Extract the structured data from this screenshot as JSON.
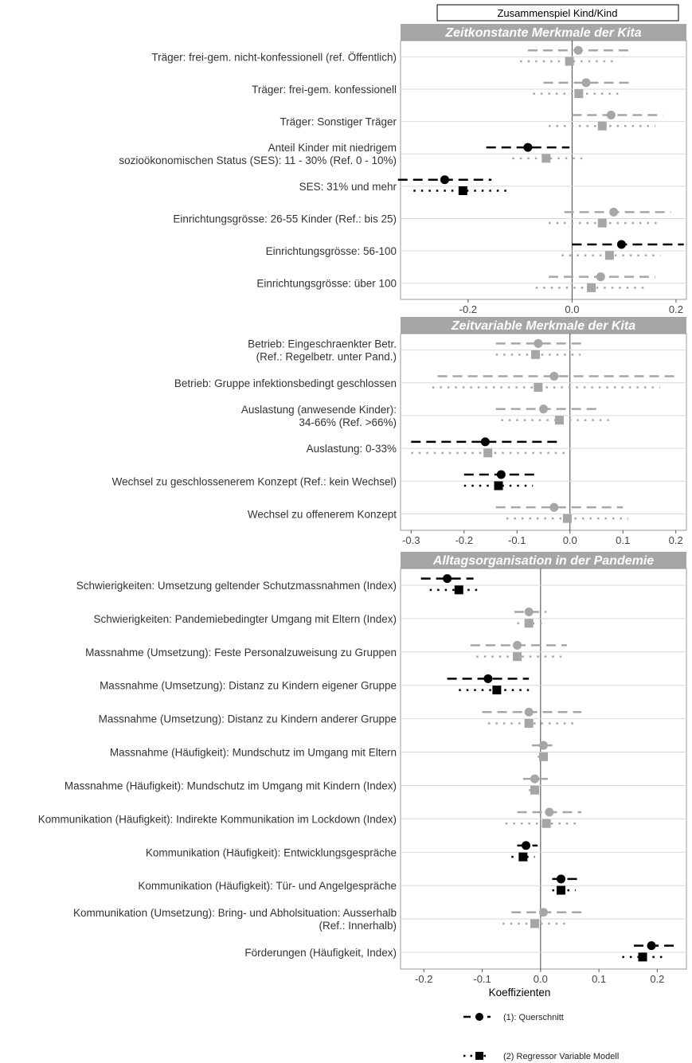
{
  "header_box": "Zusammenspiel Kind/Kind",
  "x_axis_label": "Koeffizienten",
  "legend": [
    {
      "label": "(1): Querschnitt",
      "marker": "circle",
      "line": "dashed"
    },
    {
      "label": "(2) Regressor Variable Modell",
      "marker": "square",
      "line": "dotted"
    }
  ],
  "colors": {
    "significant": "#000000",
    "not_significant": "#a6a6a6",
    "panel_strip": "#a6a6a6",
    "zero_line": "#444444"
  },
  "chart_data": [
    {
      "type": "dot-and-whisker",
      "title": "Zeitkonstante Merkmale der Kita",
      "xlim": [
        -0.33,
        0.22
      ],
      "ticks": [
        -0.2,
        0.0,
        0.2
      ],
      "tick_labels": [
        "-0.2",
        "0.0",
        "0.2"
      ],
      "labels": [
        [
          "Träger: frei-gem. nicht-konfessionell (ref. Öffentlich)"
        ],
        [
          "Träger: frei-gem. konfessionell"
        ],
        [
          "Träger: Sonstiger Träger"
        ],
        [
          "Anteil Kinder mit niedrigem",
          "sozioökonomischen Status (SES): 11 - 30% (Ref. 0 - 10%)"
        ],
        [
          "SES: 31% und mehr"
        ],
        [
          "Einrichtungsgrösse: 26-55 Kinder (Ref.: bis 25)"
        ],
        [
          "Einrichtungsgrösse: 56-100"
        ],
        [
          "Einrichtungsgrösse: über 100"
        ]
      ],
      "series": [
        {
          "name": "(1): Querschnitt",
          "est": [
            0.012,
            0.027,
            0.075,
            -0.085,
            -0.245,
            0.08,
            0.095,
            0.055
          ],
          "lo": [
            -0.085,
            -0.055,
            0.0,
            -0.165,
            -0.335,
            -0.015,
            0.0,
            -0.045
          ],
          "hi": [
            0.11,
            0.11,
            0.175,
            -0.005,
            -0.155,
            0.19,
            0.215,
            0.16
          ],
          "sig": [
            false,
            false,
            false,
            true,
            true,
            false,
            true,
            false
          ]
        },
        {
          "name": "(2) Regressor Variable Modell",
          "est": [
            -0.005,
            0.013,
            0.058,
            -0.05,
            -0.21,
            0.058,
            0.072,
            0.037
          ],
          "lo": [
            -0.1,
            -0.075,
            -0.045,
            -0.115,
            -0.305,
            -0.045,
            -0.02,
            -0.07
          ],
          "hi": [
            0.085,
            0.095,
            0.16,
            0.02,
            -0.125,
            0.165,
            0.17,
            0.14
          ],
          "sig": [
            false,
            false,
            false,
            false,
            true,
            false,
            false,
            false
          ]
        }
      ]
    },
    {
      "type": "dot-and-whisker",
      "title": "Zeitvariable Merkmale der Kita",
      "xlim": [
        -0.32,
        0.22
      ],
      "ticks": [
        -0.3,
        -0.2,
        -0.1,
        0.0,
        0.1,
        0.2
      ],
      "tick_labels": [
        "-0.3",
        "-0.2",
        "-0.1",
        "0.0",
        "0.1",
        "0.2"
      ],
      "labels": [
        [
          "Betrieb: Eingeschraenkter Betr.",
          "(Ref.: Regelbetr. unter Pand.)"
        ],
        [
          "Betrieb: Gruppe infektionsbedingt geschlossen"
        ],
        [
          "Auslastung (anwesende Kinder):",
          "34-66% (Ref. >66%)"
        ],
        [
          "Auslastung:  0-33%"
        ],
        [
          "Wechsel zu geschlossenerem Konzept (Ref.: kein Wechsel)"
        ],
        [
          "Wechsel zu offenerem Konzept"
        ]
      ],
      "series": [
        {
          "name": "(1): Querschnitt",
          "est": [
            -0.06,
            -0.03,
            -0.05,
            -0.16,
            -0.13,
            -0.03
          ],
          "lo": [
            -0.14,
            -0.25,
            -0.14,
            -0.3,
            -0.2,
            -0.14
          ],
          "hi": [
            0.03,
            0.2,
            0.06,
            -0.02,
            -0.06,
            0.1
          ],
          "sig": [
            false,
            false,
            false,
            true,
            true,
            false
          ]
        },
        {
          "name": "(2) Regressor Variable Modell",
          "est": [
            -0.065,
            -0.06,
            -0.02,
            -0.155,
            -0.135,
            -0.005
          ],
          "lo": [
            -0.14,
            -0.26,
            -0.13,
            -0.3,
            -0.2,
            -0.12
          ],
          "hi": [
            0.02,
            0.17,
            0.08,
            -0.01,
            -0.07,
            0.11
          ],
          "sig": [
            false,
            false,
            false,
            false,
            true,
            false
          ]
        }
      ]
    },
    {
      "type": "dot-and-whisker",
      "title": "Alltagsorganisation in der Pandemie",
      "xlim": [
        -0.24,
        0.25
      ],
      "ticks": [
        -0.2,
        -0.1,
        0.0,
        0.1,
        0.2
      ],
      "tick_labels": [
        "-0.2",
        "-0.1",
        "0.0",
        "0.1",
        "0.2"
      ],
      "xlabel": "Koeffizienten",
      "labels": [
        [
          "Schwierigkeiten: Umsetzung geltender Schutzmassnahmen (Index)"
        ],
        [
          "Schwierigkeiten: Pandemiebedingter Umgang mit Eltern (Index)"
        ],
        [
          "Massnahme (Umsetzung): Feste Personalzuweisung zu Gruppen"
        ],
        [
          "Massnahme (Umsetzung): Distanz zu Kindern eigener Gruppe"
        ],
        [
          "Massnahme (Umsetzung):  Distanz zu Kindern anderer Gruppe"
        ],
        [
          "Massnahme (Häufigkeit): Mundschutz im Umgang mit Eltern"
        ],
        [
          "Massnahme (Häufigkeit): Mundschutz im Umgang mit Kindern (Index)"
        ],
        [
          "Kommunikation (Häufigkeit): Indirekte Kommunikation im Lockdown (Index)"
        ],
        [
          "Kommunikation (Häufigkeit): Entwicklungsgespräche"
        ],
        [
          "Kommunikation (Häufigkeit): Tür- und Angelgespräche"
        ],
        [
          "Kommunikation (Umsetzung): Bring- und Abholsituation: Ausserhalb",
          "(Ref.: Innerhalb)"
        ],
        [
          "Förderungen (Häufigkeit, Index)"
        ]
      ],
      "series": [
        {
          "name": "(1): Querschnitt",
          "est": [
            -0.16,
            -0.02,
            -0.04,
            -0.09,
            -0.02,
            0.005,
            -0.01,
            0.015,
            -0.025,
            0.035,
            0.005,
            0.19
          ],
          "lo": [
            -0.205,
            -0.045,
            -0.12,
            -0.16,
            -0.1,
            -0.015,
            -0.03,
            -0.04,
            -0.04,
            0.02,
            -0.05,
            0.16
          ],
          "hi": [
            -0.115,
            0.01,
            0.045,
            -0.02,
            0.07,
            0.02,
            0.015,
            0.07,
            -0.005,
            0.065,
            0.07,
            0.23
          ]
        },
        {
          "name": "(2) Regressor Variable Modell",
          "est": [
            -0.14,
            -0.02,
            -0.04,
            -0.075,
            -0.02,
            0.005,
            -0.01,
            0.01,
            -0.03,
            0.035,
            -0.01,
            0.175
          ],
          "lo": [
            -0.19,
            -0.04,
            -0.11,
            -0.14,
            -0.09,
            -0.005,
            -0.02,
            -0.06,
            -0.05,
            0.02,
            -0.065,
            0.14
          ],
          "hi": [
            -0.1,
            0.01,
            0.04,
            -0.02,
            0.06,
            0.015,
            0.005,
            0.065,
            -0.01,
            0.06,
            0.05,
            0.215
          ]
        }
      ],
      "significant": [
        true,
        false,
        false,
        true,
        false,
        false,
        false,
        false,
        true,
        true,
        false,
        true
      ]
    }
  ]
}
